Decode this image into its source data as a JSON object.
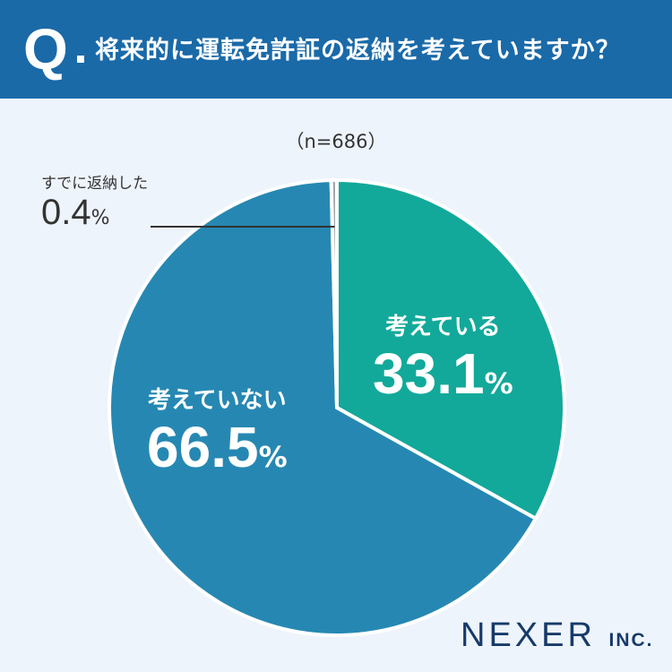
{
  "header": {
    "q_mark": "Q",
    "question": "将来的に運転免許証の返納を考えていますか？"
  },
  "sample": "（n=686）",
  "colors": {
    "header": "#1a6aa8",
    "considering": "#12a99a",
    "not_considering": "#2688b2",
    "returned": "#a3a6aa"
  },
  "chart_data": {
    "type": "pie",
    "title": "将来的に運転免許証の返納を考えていますか？",
    "start_angle_deg": 0,
    "direction": "clockwise",
    "slices": [
      {
        "label": "考えている",
        "value": 33.1,
        "display": "33.1",
        "unit": "%"
      },
      {
        "label": "考えていない",
        "value": 66.5,
        "display": "66.5",
        "unit": "%"
      },
      {
        "label": "すでに返納した",
        "value": 0.4,
        "display": "0.4",
        "unit": "%"
      }
    ]
  },
  "logo": {
    "main": "NEXER",
    "suffix": "INC."
  }
}
